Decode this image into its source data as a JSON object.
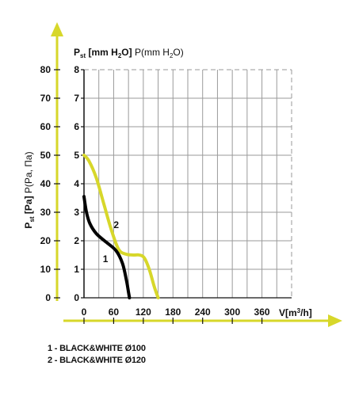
{
  "chart_data": {
    "type": "line",
    "x_axis": {
      "label_main": "V[m",
      "label_sup": "3",
      "label_end": "/h]",
      "ticks": [
        0,
        60,
        120,
        180,
        240,
        300,
        360
      ],
      "range": [
        0,
        420
      ]
    },
    "y_axis_left": {
      "label_p": "P",
      "label_sub": "st",
      "label_unit": " [Pa]",
      "label_extra": " P(Pa, Па)",
      "ticks": [
        0,
        10,
        20,
        30,
        40,
        50,
        60,
        70,
        80
      ],
      "range": [
        0,
        80
      ]
    },
    "y_axis_inner": {
      "label_p": "P",
      "label_sub": "st",
      "label_bold": " [mm H",
      "label_sub2": "2",
      "label_bold_end": "O]",
      "label_thin": " P(mm H",
      "label_sub3": "2",
      "label_thin_end": "O)",
      "ticks": [
        0,
        1,
        2,
        3,
        4,
        5,
        6,
        7,
        8
      ],
      "range": [
        0,
        8
      ]
    },
    "series": [
      {
        "name": "1",
        "color": "#000000",
        "points": [
          [
            0,
            35.5
          ],
          [
            5,
            30
          ],
          [
            12,
            26
          ],
          [
            25,
            22.5
          ],
          [
            45,
            19.5
          ],
          [
            65,
            16.5
          ],
          [
            78,
            12
          ],
          [
            86,
            6
          ],
          [
            90,
            2
          ],
          [
            92,
            0
          ]
        ]
      },
      {
        "name": "2",
        "color": "#d7d72a",
        "points": [
          [
            0,
            50
          ],
          [
            10,
            48
          ],
          [
            25,
            42
          ],
          [
            40,
            33
          ],
          [
            55,
            24
          ],
          [
            70,
            17
          ],
          [
            85,
            15.3
          ],
          [
            100,
            15
          ],
          [
            112,
            15
          ],
          [
            122,
            14
          ],
          [
            132,
            10
          ],
          [
            142,
            4
          ],
          [
            150,
            0
          ]
        ]
      }
    ],
    "grid": true,
    "legend": [
      "1 - BLACK&WHITE Ø100",
      "2 - BLACK&WHITE Ø120"
    ]
  },
  "colors": {
    "accent_arrow": "#d7d72a",
    "grid": "#9a9a9a"
  }
}
